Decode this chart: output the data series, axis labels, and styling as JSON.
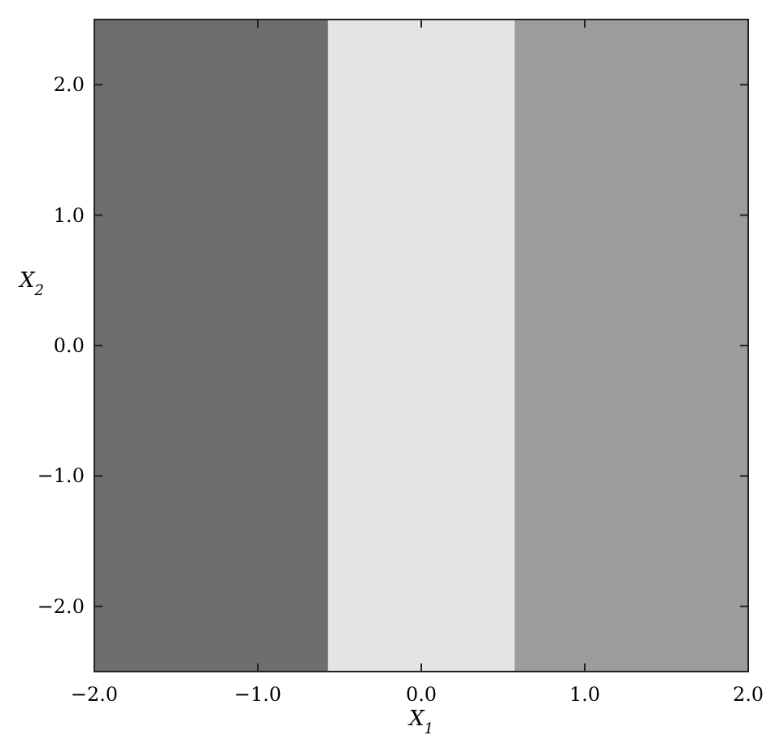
{
  "chart_data": {
    "type": "line",
    "xlabel": "X$_{1}$",
    "ylabel": "X$_{2}$",
    "xlim": [
      -2,
      2
    ],
    "ylim": [
      -2.5,
      2.5
    ],
    "xticks": [
      {
        "value": -2,
        "label": "−2.0"
      },
      {
        "value": -1,
        "label": "−1.0"
      },
      {
        "value": 0,
        "label": "0.0"
      },
      {
        "value": 1,
        "label": "1.0"
      },
      {
        "value": 2,
        "label": "2.0"
      }
    ],
    "yticks": [
      {
        "value": -2,
        "label": "−2.0"
      },
      {
        "value": -1,
        "label": "−1.0"
      },
      {
        "value": 0,
        "label": "0.0"
      },
      {
        "value": 1,
        "label": "1.0"
      },
      {
        "value": 2,
        "label": "2.0"
      }
    ],
    "bands": [
      {
        "axis": "x",
        "from": -2,
        "to": -0.57,
        "color": "#6e6e6e"
      },
      {
        "axis": "x",
        "from": -0.57,
        "to": 0.57,
        "color": "#e4e4e4"
      },
      {
        "axis": "x",
        "from": 0.57,
        "to": 2,
        "color": "#9c9c9c"
      }
    ]
  }
}
